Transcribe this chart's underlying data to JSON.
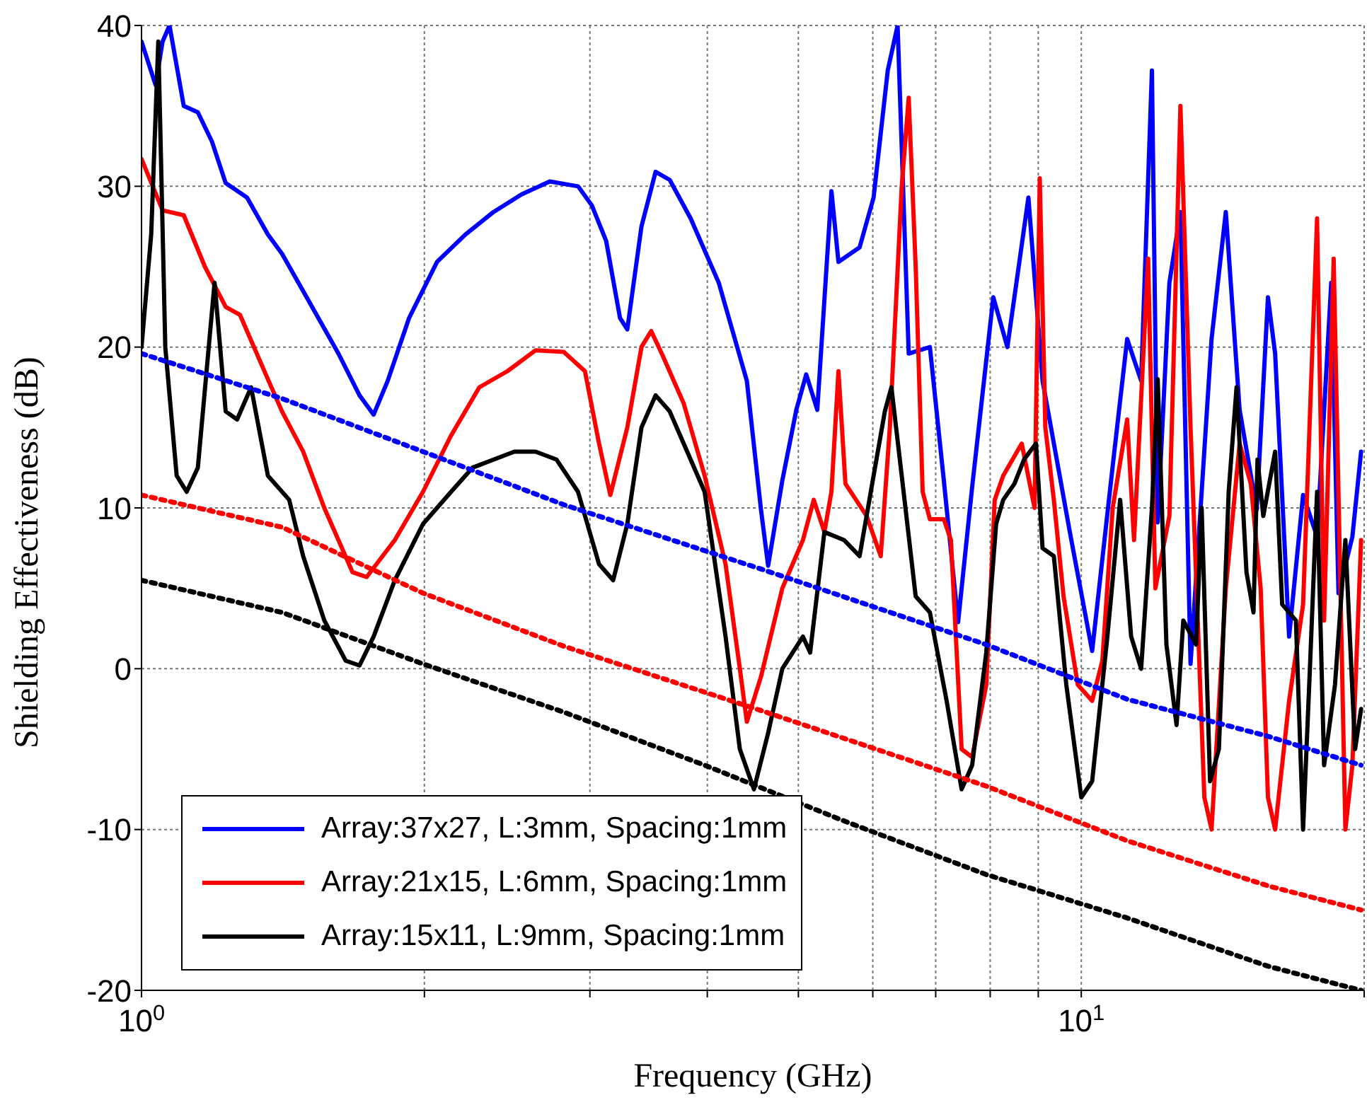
{
  "chart_data": {
    "type": "line",
    "xlabel": "Frequency   (GHz)",
    "ylabel": "Shielding Effectiveness   (dB)",
    "log": "x",
    "xlim": [
      1,
      20
    ],
    "ylim": [
      -20,
      40
    ],
    "xticks": [
      {
        "value": 1,
        "label": "10$^{0}$"
      },
      {
        "value": 2,
        "label": null
      },
      {
        "value": 3,
        "label": null
      },
      {
        "value": 4,
        "label": null
      },
      {
        "value": 5,
        "label": null
      },
      {
        "value": 6,
        "label": null
      },
      {
        "value": 7,
        "label": null
      },
      {
        "value": 8,
        "label": null
      },
      {
        "value": 9,
        "label": null
      },
      {
        "value": 10,
        "label": "10$^{1}$"
      },
      {
        "value": 20,
        "label": null
      }
    ],
    "yticks": [
      -20,
      -10,
      0,
      10,
      20,
      30,
      40
    ],
    "grid": true,
    "legend": "bottom left",
    "line_style": "solid",
    "marker": "none",
    "series": [
      {
        "name": "Array:37x27, L:3mm, Spacing:1mm",
        "color": "#0000ff",
        "x": [
          1.0,
          1.035,
          1.053,
          1.071,
          1.109,
          1.148,
          1.188,
          1.229,
          1.295,
          1.363,
          1.411,
          1.512,
          1.62,
          1.706,
          1.766,
          1.828,
          1.926,
          2.063,
          2.211,
          2.369,
          2.538,
          2.719,
          2.914,
          3.015,
          3.122,
          3.23,
          3.288,
          3.404,
          3.524,
          3.648,
          3.84,
          4.114,
          4.407,
          4.562,
          4.643,
          4.807,
          4.975,
          5.097,
          5.237,
          5.422,
          5.516,
          5.809,
          6.012,
          6.224,
          6.376,
          6.552,
          6.901,
          7.141,
          7.395,
          7.654,
          8.061,
          8.344,
          8.785,
          9.095,
          9.745,
          10.27,
          10.8,
          11.19,
          11.58,
          11.89,
          12.06,
          12.41,
          12.75,
          13.07,
          13.76,
          14.25,
          14.74,
          15.37,
          15.8,
          16.08,
          16.64,
          17.22,
          17.82,
          18.45,
          18.78,
          19.43,
          19.85
        ],
        "values": [
          39,
          36.3,
          39,
          40,
          35,
          34.6,
          32.8,
          30.2,
          29.3,
          27,
          25.8,
          22.7,
          19.6,
          17,
          15.8,
          17.9,
          21.8,
          25.3,
          27,
          28.4,
          29.5,
          30.3,
          30,
          28.8,
          26.6,
          21.8,
          21.1,
          27.5,
          30.9,
          30.4,
          28,
          24,
          17.9,
          9.9,
          6.4,
          11.7,
          16.1,
          18.3,
          16.1,
          29.7,
          25.3,
          26.2,
          29.3,
          37.2,
          40,
          19.6,
          20,
          11.7,
          2.9,
          11.3,
          23.1,
          20,
          29.3,
          17.9,
          8.2,
          1.1,
          12.6,
          20.5,
          17.9,
          37.2,
          9.1,
          24,
          28.4,
          0.3,
          20.5,
          28.4,
          16.1,
          9.9,
          23.1,
          19.6,
          2,
          10.8,
          8.2,
          24,
          4.7,
          8.2,
          13.5
        ]
      },
      {
        "name": "Array:21x15, L:6mm, Spacing:1mm",
        "color": "#ff0000",
        "x": [
          1.0,
          1.053,
          1.109,
          1.168,
          1.229,
          1.273,
          1.363,
          1.411,
          1.486,
          1.565,
          1.677,
          1.736,
          1.86,
          1.993,
          2.135,
          2.288,
          2.451,
          2.626,
          2.814,
          2.964,
          3.068,
          3.154,
          3.288,
          3.404,
          3.486,
          3.584,
          3.775,
          3.974,
          4.183,
          4.332,
          4.407,
          4.562,
          4.807,
          5.056,
          5.192,
          5.329,
          5.422,
          5.516,
          5.611,
          5.91,
          6.118,
          6.256,
          6.441,
          6.552,
          6.665,
          6.78,
          6.901,
          7.141,
          7.266,
          7.459,
          7.654,
          7.923,
          8.089,
          8.259,
          8.643,
          8.918,
          9.033,
          9.157,
          9.35,
          9.575,
          9.915,
          10.27,
          10.53,
          10.8,
          11.19,
          11.38,
          11.78,
          11.99,
          12.41,
          12.75,
          13.07,
          13.52,
          13.76,
          14.25,
          14.74,
          15.15,
          15.52,
          15.8,
          16.08,
          16.64,
          17.22,
          17.82,
          18.13,
          18.56,
          19.1,
          19.43,
          19.85
        ],
        "values": [
          31.7,
          28.5,
          28.2,
          25,
          22.5,
          22,
          18,
          16,
          13.5,
          10,
          6,
          5.7,
          8,
          11,
          14.5,
          17.5,
          18.5,
          19.8,
          19.7,
          18.5,
          14,
          10.8,
          15,
          20,
          21,
          19.5,
          16.5,
          12,
          6.5,
          0,
          -3.3,
          -0.5,
          5,
          8,
          10.5,
          8.5,
          11,
          18.5,
          11.5,
          9.5,
          7,
          15,
          30,
          35.5,
          25,
          11,
          9.3,
          9.3,
          8,
          -5,
          -5.5,
          -1,
          10.5,
          12,
          14,
          10,
          30.5,
          15,
          10.5,
          4.5,
          -1,
          -2,
          0.5,
          10,
          15.5,
          8,
          25.5,
          5,
          9.5,
          35,
          15,
          -8,
          -10,
          5,
          14,
          11.5,
          5,
          -8,
          -10,
          -2,
          4,
          28,
          3,
          25.5,
          -10,
          -6,
          8
        ]
      },
      {
        "name": "Array:15x11, L:9mm, Spacing:1mm",
        "color": "#000000",
        "x": [
          1.0,
          1.024,
          1.042,
          1.06,
          1.09,
          1.117,
          1.148,
          1.196,
          1.229,
          1.264,
          1.308,
          1.363,
          1.436,
          1.486,
          1.565,
          1.649,
          1.706,
          1.766,
          1.86,
          1.993,
          2.135,
          2.25,
          2.369,
          2.493,
          2.626,
          2.765,
          2.914,
          3.068,
          3.176,
          3.288,
          3.404,
          3.524,
          3.648,
          3.775,
          3.974,
          4.183,
          4.332,
          4.484,
          4.643,
          4.807,
          5.056,
          5.146,
          5.329,
          5.592,
          5.809,
          6.012,
          6.18,
          6.28,
          6.441,
          6.665,
          6.901,
          7.19,
          7.459,
          7.654,
          7.923,
          8.117,
          8.259,
          8.489,
          8.69,
          8.95,
          9.095,
          9.35,
          9.64,
          10.0,
          10.27,
          10.66,
          11.0,
          11.3,
          11.58,
          11.89,
          12.06,
          12.32,
          12.63,
          12.84,
          13.25,
          13.43,
          13.71,
          14.01,
          14.35,
          14.63,
          14.99,
          15.25,
          15.4,
          15.62,
          16.08,
          16.36,
          16.92,
          17.22,
          17.51,
          17.82,
          18.13,
          18.62,
          19.1,
          19.56,
          19.85
        ],
        "values": [
          20,
          27,
          39,
          20,
          12,
          11,
          12.5,
          24,
          16,
          15.5,
          17.5,
          12,
          10.5,
          7,
          3,
          0.5,
          0.2,
          2,
          5.5,
          9,
          11,
          12.5,
          13,
          13.5,
          13.5,
          13,
          11,
          6.5,
          5.5,
          9,
          15,
          17,
          16,
          14,
          11,
          2,
          -5,
          -7.5,
          -4,
          0,
          2,
          1,
          8.5,
          8,
          7,
          12,
          16,
          17.5,
          12,
          4.5,
          3.5,
          -2,
          -7.5,
          -6,
          1,
          9,
          10.5,
          11.5,
          13,
          14,
          7.5,
          7,
          -1,
          -8,
          -7,
          2,
          10.5,
          2,
          0,
          10,
          18,
          1.5,
          -3.5,
          3,
          1.5,
          10,
          -7,
          -5,
          11,
          17.5,
          6,
          3.5,
          13,
          9.5,
          13.5,
          4,
          3,
          -10,
          0,
          11,
          -6,
          -1,
          8,
          -5,
          -2.5
        ]
      },
      {
        "color": "#0000ff",
        "line_style": "dotted",
        "x": [
          1,
          1.411,
          1.993,
          2.814,
          4.562,
          7.923,
          11.19,
          15.8,
          19.85
        ],
        "values": [
          19.6,
          16.8,
          13.5,
          10.2,
          6.2,
          1.5,
          -1.9,
          -4.2,
          -6
        ]
      },
      {
        "color": "#ff0000",
        "line_style": "dotted",
        "x": [
          1,
          1.411,
          1.993,
          2.814,
          4.562,
          7.923,
          11.19,
          15.8,
          19.85
        ],
        "values": [
          10.8,
          8.8,
          4.7,
          1.4,
          -2.6,
          -7.3,
          -10.7,
          -13.5,
          -15
        ]
      },
      {
        "color": "#000000",
        "line_style": "dotted",
        "x": [
          1,
          1.411,
          1.993,
          2.814,
          3.974,
          5.611,
          7.923,
          11.19,
          15.8,
          19.85
        ],
        "values": [
          5.5,
          3.5,
          0.3,
          -2.7,
          -6,
          -9.5,
          -12.8,
          -15.5,
          -18.5,
          -20
        ]
      }
    ]
  }
}
